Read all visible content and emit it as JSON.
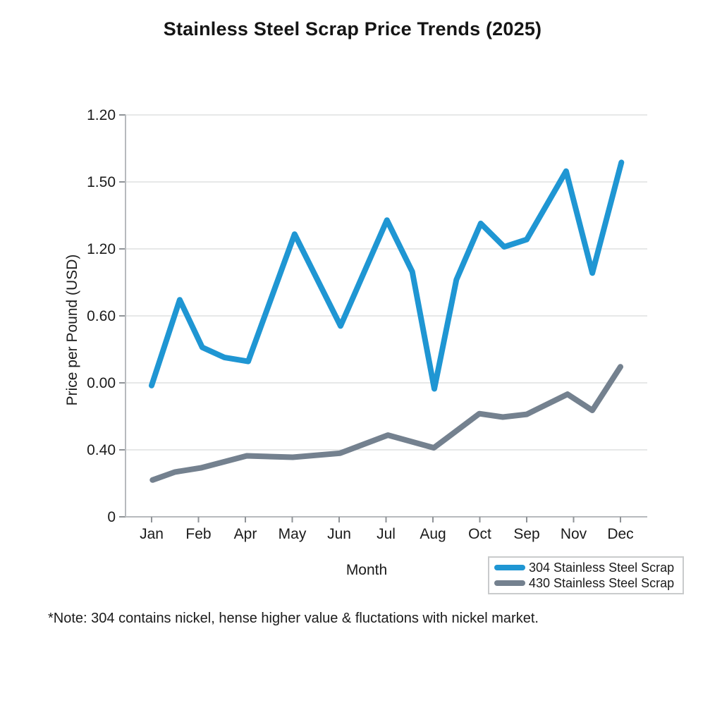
{
  "title": "Stainless Steel Scrap Price Trends (2025)",
  "y_axis": {
    "label": "Price per Pound (USD)",
    "tick_labels_top_to_bottom": [
      "1.20",
      "1.50",
      "1.20",
      "0.60",
      "0.00",
      "0.40",
      "0"
    ]
  },
  "x_axis": {
    "label": "Month",
    "tick_labels": [
      "Jan",
      "Feb",
      "Apr",
      "May",
      "Jun",
      "Jul",
      "Aug",
      "Oct",
      "Sep",
      "Nov",
      "Dec"
    ]
  },
  "legend": {
    "items": [
      {
        "label": "304 Stainless Steel Scrap",
        "color": "#1f96d3"
      },
      {
        "label": "430 Stainless Steel Scrap",
        "color": "#74818f"
      }
    ]
  },
  "note": "*Note: 304 contains nickel, hense higher value & fluctations with nickel market.",
  "colors": {
    "text": "#1b1b1b",
    "grid": "#dfe0e1",
    "axis": "#b7babd",
    "tick": "#8f9397",
    "background": "#ffffff"
  },
  "chart_data": {
    "type": "line",
    "title": "Stainless Steel Scrap Price Trends (2025)",
    "xlabel": "Month",
    "ylabel": "Price per Pound (USD)",
    "categories": [
      "Jan",
      "Feb",
      "Apr",
      "May",
      "Jun",
      "Jul",
      "Aug",
      "Oct",
      "Sep",
      "Nov",
      "Dec"
    ],
    "y_tick_labels_bottom_to_top": [
      "0",
      "0.40",
      "0.00",
      "0.60",
      "1.20",
      "1.50",
      "1.20"
    ],
    "grid": true,
    "legend_position": "bottom-right",
    "point_format": "[x = month tick index, 0=Jan .. 10=Dec; y = vertical position in gridline units, 0=bottom axis .. 6=top gridline]",
    "series": [
      {
        "name": "304 Stainless Steel Scrap",
        "color": "#1f96d3",
        "stroke_width": 8,
        "points": [
          [
            0,
            1.96
          ],
          [
            0.6,
            3.24
          ],
          [
            1.08,
            2.53
          ],
          [
            1.55,
            2.38
          ],
          [
            2.06,
            2.32
          ],
          [
            3.05,
            4.22
          ],
          [
            4.03,
            2.85
          ],
          [
            5.02,
            4.43
          ],
          [
            5.56,
            3.66
          ],
          [
            6.03,
            1.91
          ],
          [
            6.5,
            3.54
          ],
          [
            7.02,
            4.38
          ],
          [
            7.52,
            4.03
          ],
          [
            8.0,
            4.14
          ],
          [
            8.84,
            5.16
          ],
          [
            9.4,
            3.64
          ],
          [
            10.02,
            5.29
          ]
        ]
      },
      {
        "name": "430 Stainless Steel Scrap",
        "color": "#74818f",
        "stroke_width": 8,
        "points": [
          [
            0.02,
            0.55
          ],
          [
            0.5,
            0.67
          ],
          [
            1.05,
            0.73
          ],
          [
            2.03,
            0.91
          ],
          [
            3.01,
            0.89
          ],
          [
            4.02,
            0.95
          ],
          [
            5.04,
            1.22
          ],
          [
            6.02,
            1.03
          ],
          [
            6.99,
            1.54
          ],
          [
            7.49,
            1.49
          ],
          [
            8.0,
            1.53
          ],
          [
            8.87,
            1.83
          ],
          [
            9.4,
            1.59
          ],
          [
            10.0,
            2.24
          ]
        ]
      }
    ]
  }
}
